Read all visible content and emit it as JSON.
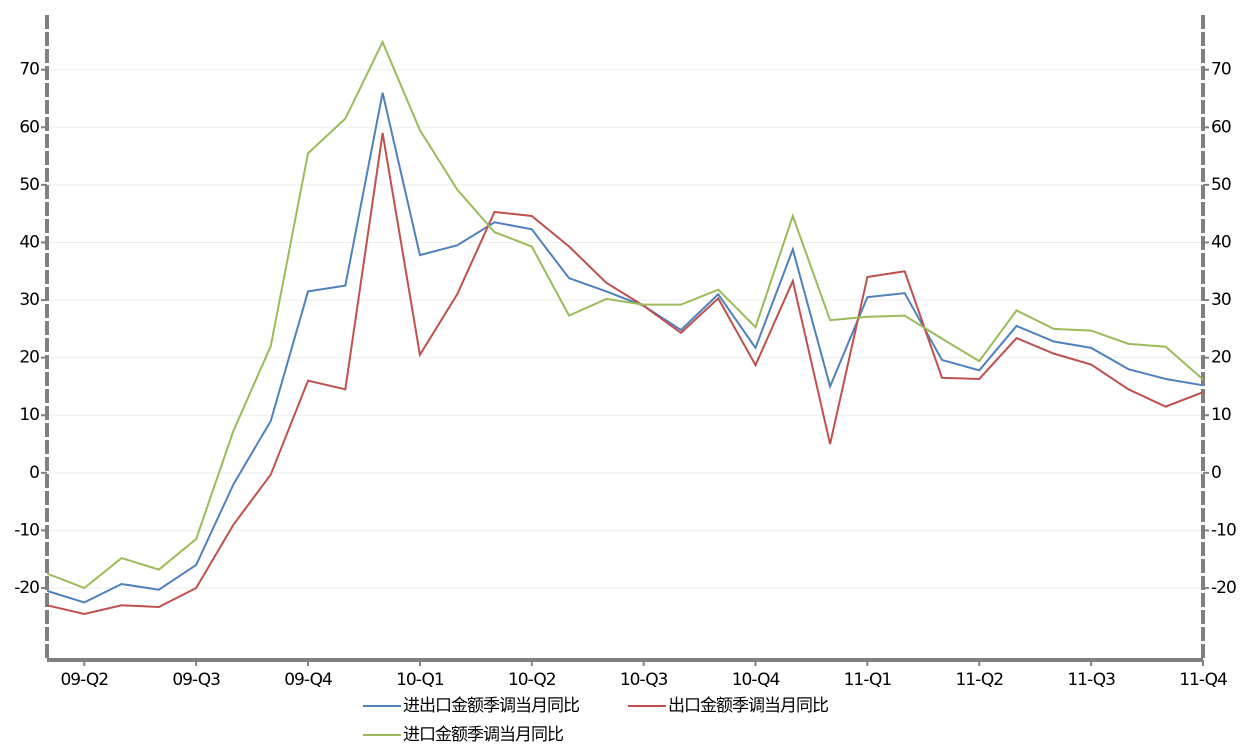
{
  "chart_data": {
    "type": "line",
    "categories": [
      null,
      "09-Q2",
      null,
      null,
      "09-Q3",
      null,
      null,
      "09-Q4",
      null,
      null,
      "10-Q1",
      null,
      null,
      "10-Q2",
      null,
      null,
      "10-Q3",
      null,
      null,
      "10-Q4",
      null,
      null,
      "11-Q1",
      null,
      null,
      "11-Q2",
      null,
      null,
      "11-Q3",
      null,
      null,
      "11-Q4"
    ],
    "series": [
      {
        "name": "进出口金额季调当月同比",
        "color": "#4f81bd",
        "values": [
          -20.5,
          -22.5,
          -19.3,
          -20.3,
          -16,
          -2,
          9,
          31.5,
          32.5,
          66,
          37.8,
          39.5,
          43.5,
          42.3,
          33.8,
          31.5,
          29,
          24.8,
          31,
          21.7,
          38.8,
          15,
          30.5,
          31.2,
          19.6,
          17.8,
          25.5,
          22.8,
          21.7,
          18,
          16.3,
          15.2
        ]
      },
      {
        "name": "出口金额季调当月同比",
        "color": "#c0504d",
        "values": [
          -23,
          -24.5,
          -23,
          -23.3,
          -20,
          -9,
          -0.3,
          16,
          14.5,
          59,
          20.5,
          31,
          45.3,
          44.6,
          39.3,
          33,
          29,
          24.3,
          30.3,
          18.7,
          33.3,
          5,
          34,
          35,
          16.5,
          16.3,
          23.4,
          20.7,
          18.8,
          14.5,
          11.5,
          14
        ]
      },
      {
        "name": "进口金额季调当月同比",
        "color": "#9bbb59",
        "values": [
          -17.5,
          -20,
          -14.8,
          -16.8,
          -11.5,
          7.3,
          22,
          55.5,
          61.5,
          74.8,
          59.5,
          49.2,
          41.8,
          39.3,
          27.3,
          30.2,
          29.2,
          29.2,
          31.8,
          25.3,
          44.6,
          26.5,
          27.1,
          27.3,
          23.3,
          19.4,
          28.2,
          25,
          24.7,
          22.4,
          21.9,
          16.2
        ]
      }
    ],
    "ylim": [
      -32.5,
      79.5
    ],
    "yticks": [
      -20,
      -10,
      0,
      10,
      20,
      30,
      40,
      50,
      60,
      70
    ],
    "y2lim": [
      -32.5,
      79.5
    ],
    "y2ticks": [
      -20,
      -10,
      0,
      10,
      20,
      30,
      40,
      50,
      60,
      70
    ],
    "grid": true
  }
}
